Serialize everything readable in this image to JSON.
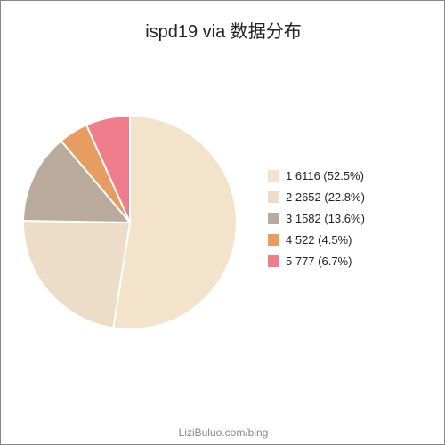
{
  "chart_data": {
    "type": "pie",
    "title": "ispd19 via 数据分布",
    "categories": [
      "1",
      "2",
      "3",
      "4",
      "5"
    ],
    "values": [
      6116,
      2652,
      1582,
      522,
      777
    ],
    "percentages": [
      "52.5%",
      "22.8%",
      "13.6%",
      "4.5%",
      "6.7%"
    ],
    "colors": [
      "#f3e3cb",
      "#ecdcc8",
      "#b9aa9c",
      "#e69d5f",
      "#f07d8c"
    ],
    "legend_labels": [
      "1 6116 (52.5%)",
      "2 2652 (22.8%)",
      "3 1582 (13.6%)",
      "4 522 (4.5%)",
      "5 777 (6.7%)"
    ],
    "legend_position": "right"
  },
  "watermark": "LiziBuluo.com/bing"
}
